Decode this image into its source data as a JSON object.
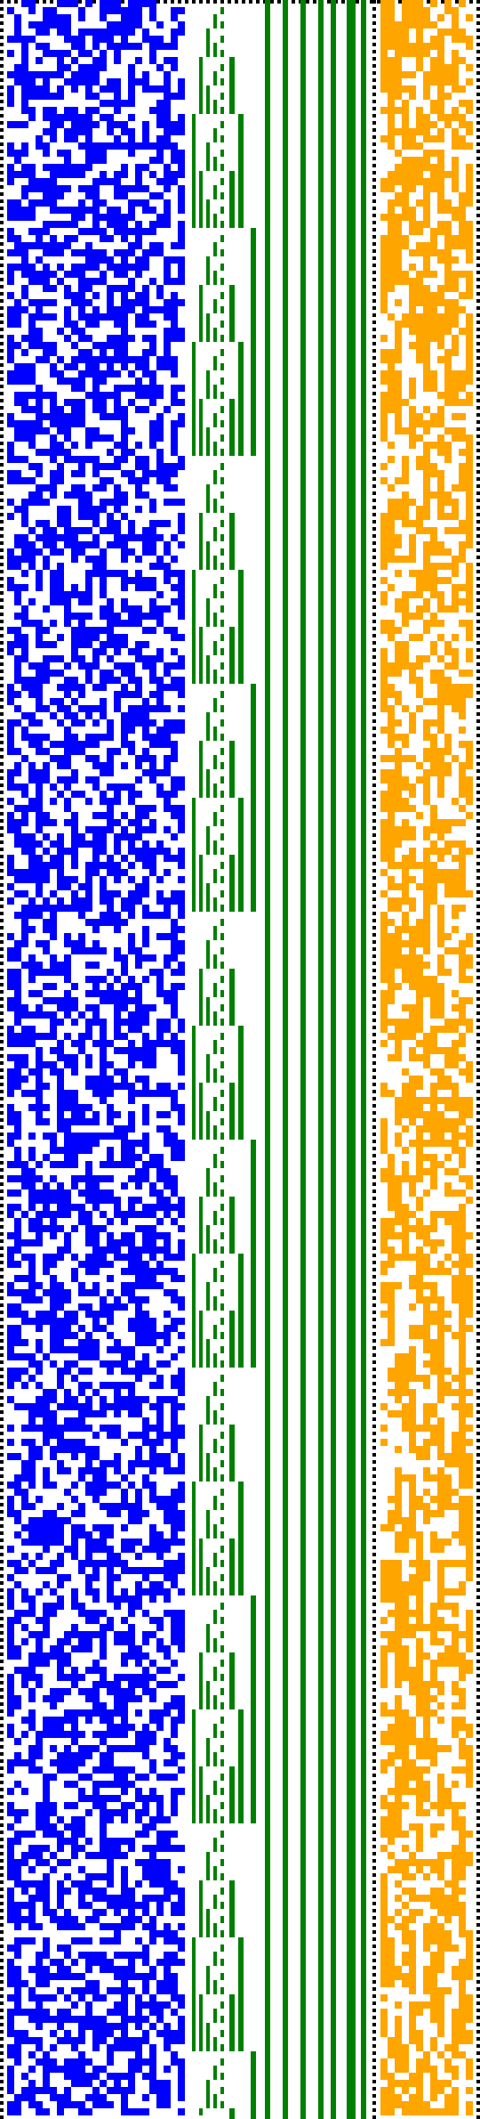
{
  "colors": {
    "background": "#ffffff",
    "dots": "#000000",
    "left_block": "#0000ff",
    "middle_bars": "#008000",
    "right_block": "#ffa500"
  },
  "pattern": {
    "left_block_density": 0.55,
    "right_block_density": 0.72,
    "seed": 7
  }
}
